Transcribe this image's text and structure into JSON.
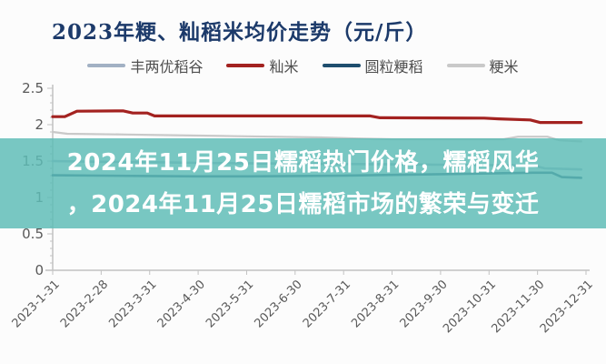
{
  "banner": {
    "line1": "2024年11月25日糯稻热门价格，糯稻风华",
    "line2": "，2024年11月25日糯稻市场的繁荣与变迁",
    "background_color": "#5ebcb6",
    "background_alpha": 0.84,
    "text_color": "#ffffff"
  },
  "chart_data": {
    "type": "line",
    "title": "2023年粳、籼稻米均价走势（元/斤）",
    "title_color": "#1c3a6a",
    "xlabel": "",
    "ylabel": "",
    "unit": "元/斤",
    "ylim": [
      0,
      2.5
    ],
    "y_major_ticks": [
      "0",
      "0.5",
      "1",
      "1.5",
      "2",
      "2.5"
    ],
    "y_minor_step": 0.1,
    "grid": false,
    "legend_position": "top",
    "axis_color": "#c2c2c2",
    "tick_label_color": "#595959",
    "x_tick_labels": [
      "2023-1-31",
      "2023-2-28",
      "2023-3-31",
      "2023-4-30",
      "2023-5-31",
      "2023-6-30",
      "2023-7-31",
      "2023-8-31",
      "2023-9-30",
      "2023-10-31",
      "2023-11-30",
      "2023-12-31"
    ],
    "series": [
      {
        "name": "丰两优稻谷",
        "color": "#a2b1c4",
        "width": 2.6,
        "points": [
          [
            0,
            1.5
          ],
          [
            1,
            1.49
          ],
          [
            2,
            1.485
          ],
          [
            3,
            1.475
          ],
          [
            4,
            1.47
          ],
          [
            5,
            1.465
          ],
          [
            6,
            1.46
          ],
          [
            7,
            1.455
          ],
          [
            8,
            1.45
          ],
          [
            9,
            1.445
          ],
          [
            9.9,
            1.44
          ],
          [
            10.15,
            1.4
          ],
          [
            10.9,
            1.385
          ]
        ]
      },
      {
        "name": "籼米",
        "color": "#a32220",
        "width": 3.2,
        "points": [
          [
            0,
            2.11
          ],
          [
            0.25,
            2.11
          ],
          [
            0.5,
            2.185
          ],
          [
            1.45,
            2.19
          ],
          [
            1.65,
            2.16
          ],
          [
            1.95,
            2.16
          ],
          [
            2.1,
            2.12
          ],
          [
            6.55,
            2.12
          ],
          [
            6.75,
            2.095
          ],
          [
            8.9,
            2.09
          ],
          [
            9.2,
            2.08
          ],
          [
            9.85,
            2.065
          ],
          [
            10.05,
            2.03
          ],
          [
            10.9,
            2.03
          ]
        ]
      },
      {
        "name": "圆粒粳稻",
        "color": "#1f4e6e",
        "width": 2.6,
        "points": [
          [
            0,
            1.305
          ],
          [
            1,
            1.3
          ],
          [
            2,
            1.295
          ],
          [
            3,
            1.29
          ],
          [
            4,
            1.29
          ],
          [
            5,
            1.295
          ],
          [
            6,
            1.3
          ],
          [
            7,
            1.31
          ],
          [
            8,
            1.32
          ],
          [
            9,
            1.33
          ],
          [
            9.9,
            1.34
          ],
          [
            10.3,
            1.34
          ],
          [
            10.5,
            1.28
          ],
          [
            10.9,
            1.27
          ]
        ]
      },
      {
        "name": "粳米",
        "color": "#c9c9c9",
        "width": 2.2,
        "points": [
          [
            0,
            1.9
          ],
          [
            0.3,
            1.875
          ],
          [
            1.5,
            1.865
          ],
          [
            2.5,
            1.855
          ],
          [
            3.5,
            1.845
          ],
          [
            4.5,
            1.835
          ],
          [
            5.5,
            1.825
          ],
          [
            6.3,
            1.81
          ],
          [
            7.0,
            1.8
          ],
          [
            9.3,
            1.8
          ],
          [
            9.6,
            1.835
          ],
          [
            10.2,
            1.835
          ],
          [
            10.45,
            1.785
          ],
          [
            10.9,
            1.77
          ]
        ]
      }
    ]
  }
}
